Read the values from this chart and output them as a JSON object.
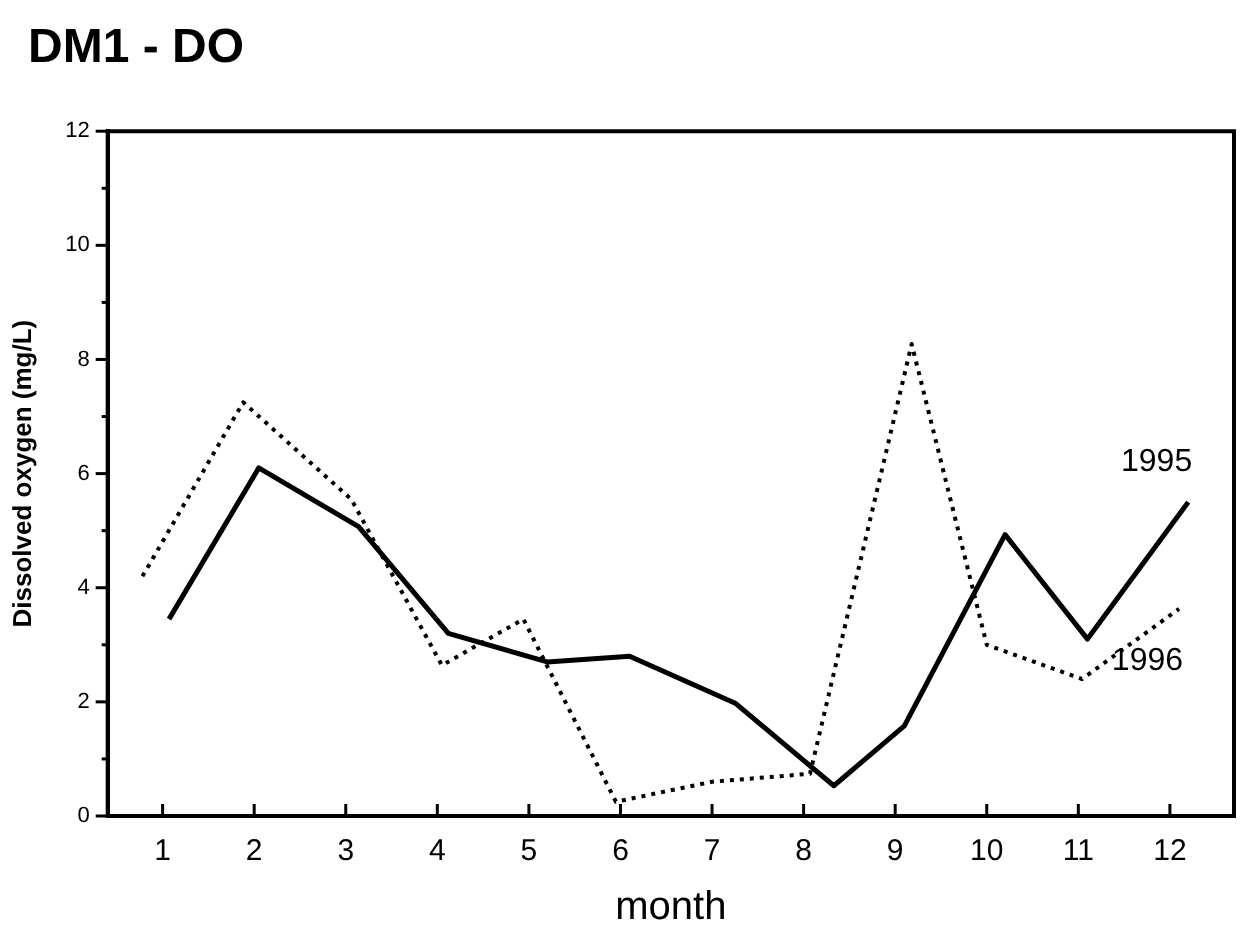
{
  "chart_data": {
    "type": "line",
    "title": "DM1 - DO",
    "xlabel": "month",
    "ylabel": "Dissolved oxygen (mg/L)",
    "xlim": [
      0.4,
      12.7
    ],
    "xticks": [
      1,
      2,
      3,
      4,
      5,
      6,
      7,
      8,
      9,
      10,
      11,
      12
    ],
    "ylim": [
      0,
      12
    ],
    "yticks": [
      0,
      {
        "value": 1,
        "label": null
      },
      2,
      {
        "value": 3,
        "label": null
      },
      4,
      {
        "value": 5,
        "label": null
      },
      6,
      {
        "value": 7,
        "label": null
      },
      8,
      {
        "value": 9,
        "label": null
      },
      10,
      {
        "value": 11,
        "label": null
      },
      12
    ],
    "grid": false,
    "legend": false,
    "marker": "none",
    "series": [
      {
        "name": "1995",
        "color": "#000000",
        "line_style": "solid",
        "x": [
          1.07,
          2.05,
          3.14,
          4.12,
          5.2,
          6.1,
          7.26,
          8.33,
          9.1,
          10.2,
          11.1,
          12.2
        ],
        "values": [
          3.45,
          6.1,
          5.07,
          3.2,
          2.7,
          2.8,
          1.97,
          0.53,
          1.58,
          4.93,
          3.1,
          5.5
        ]
      },
      {
        "name": "1996",
        "color": "#000000",
        "line_style": "dotted",
        "x": [
          0.78,
          1.88,
          3.06,
          4.05,
          4.94,
          5.95,
          7.0,
          8.07,
          9.18,
          10.0,
          11.04,
          12.1
        ],
        "values": [
          4.2,
          7.25,
          5.55,
          2.64,
          3.45,
          0.25,
          0.6,
          0.74,
          8.27,
          3.0,
          2.4,
          3.63
        ]
      }
    ]
  }
}
